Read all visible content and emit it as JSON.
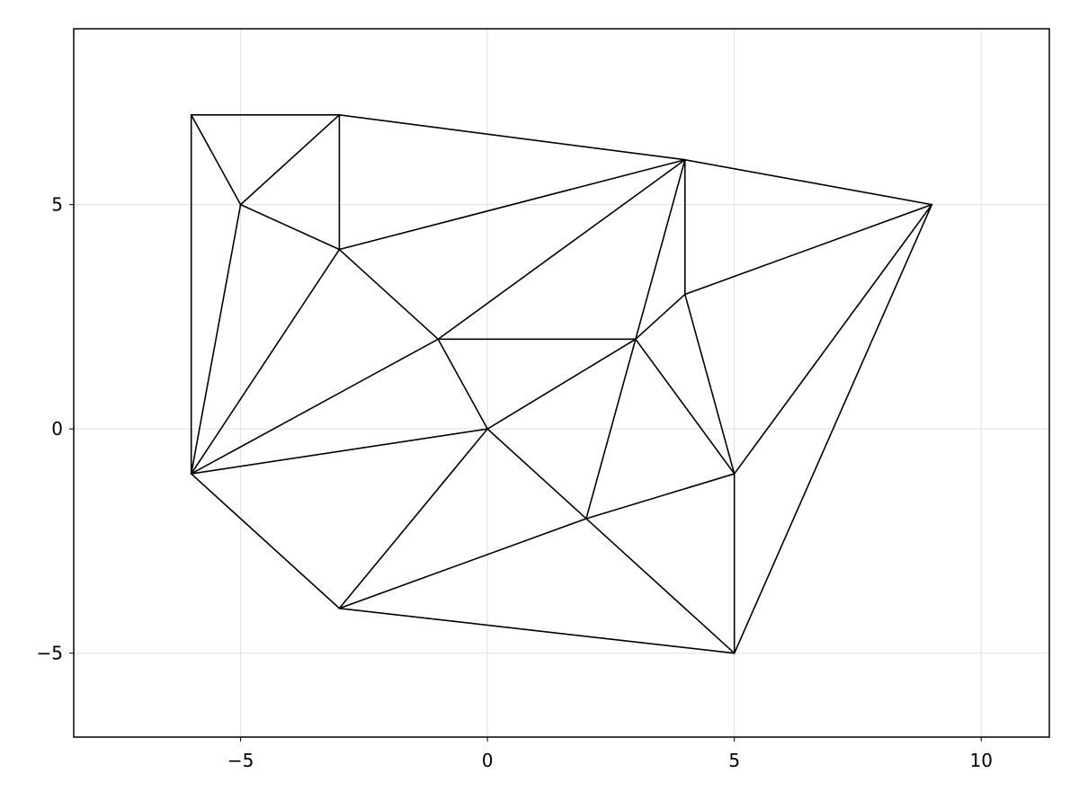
{
  "chart_data": {
    "type": "triangulation",
    "title": "",
    "xlabel": "",
    "ylabel": "",
    "xlim": [
      -8.38,
      11.38
    ],
    "ylim": [
      -6.87,
      8.92
    ],
    "grid": true,
    "xticks": [
      -5,
      0,
      5,
      10
    ],
    "yticks": [
      -5,
      0,
      5
    ],
    "xtick_labels": [
      "−5",
      "0",
      "5",
      "10"
    ],
    "ytick_labels": [
      "−5",
      "0",
      "5"
    ],
    "line_color": "#000000",
    "grid_color": "#e5e5e5",
    "points": [
      [
        -6,
        7
      ],
      [
        -3,
        7
      ],
      [
        -5,
        5
      ],
      [
        -3,
        4
      ],
      [
        4,
        6
      ],
      [
        9,
        5
      ],
      [
        4,
        3
      ],
      [
        -1,
        2
      ],
      [
        3,
        2
      ],
      [
        0,
        0
      ],
      [
        -6,
        -1
      ],
      [
        5,
        -1
      ],
      [
        2,
        -2
      ],
      [
        -3,
        -4
      ],
      [
        5,
        -5
      ]
    ],
    "edges": [
      [
        [
          -6,
          7
        ],
        [
          -3,
          7
        ]
      ],
      [
        [
          -6,
          7
        ],
        [
          -5,
          5
        ]
      ],
      [
        [
          -6,
          7
        ],
        [
          -6,
          -1
        ]
      ],
      [
        [
          -3,
          7
        ],
        [
          -5,
          5
        ]
      ],
      [
        [
          -3,
          7
        ],
        [
          -3,
          4
        ]
      ],
      [
        [
          -3,
          7
        ],
        [
          4,
          6
        ]
      ],
      [
        [
          -5,
          5
        ],
        [
          -3,
          4
        ]
      ],
      [
        [
          -5,
          5
        ],
        [
          -6,
          -1
        ]
      ],
      [
        [
          -3,
          4
        ],
        [
          4,
          6
        ]
      ],
      [
        [
          -3,
          4
        ],
        [
          -1,
          2
        ]
      ],
      [
        [
          -3,
          4
        ],
        [
          -6,
          -1
        ]
      ],
      [
        [
          4,
          6
        ],
        [
          9,
          5
        ]
      ],
      [
        [
          4,
          6
        ],
        [
          -1,
          2
        ]
      ],
      [
        [
          4,
          6
        ],
        [
          3,
          2
        ]
      ],
      [
        [
          4,
          6
        ],
        [
          4,
          3
        ]
      ],
      [
        [
          9,
          5
        ],
        [
          4,
          3
        ]
      ],
      [
        [
          9,
          5
        ],
        [
          5,
          -1
        ]
      ],
      [
        [
          9,
          5
        ],
        [
          5,
          -5
        ]
      ],
      [
        [
          4,
          3
        ],
        [
          3,
          2
        ]
      ],
      [
        [
          4,
          3
        ],
        [
          5,
          -1
        ]
      ],
      [
        [
          -1,
          2
        ],
        [
          3,
          2
        ]
      ],
      [
        [
          -1,
          2
        ],
        [
          0,
          0
        ]
      ],
      [
        [
          -1,
          2
        ],
        [
          -6,
          -1
        ]
      ],
      [
        [
          3,
          2
        ],
        [
          0,
          0
        ]
      ],
      [
        [
          3,
          2
        ],
        [
          5,
          -1
        ]
      ],
      [
        [
          3,
          2
        ],
        [
          2,
          -2
        ]
      ],
      [
        [
          0,
          0
        ],
        [
          -6,
          -1
        ]
      ],
      [
        [
          0,
          0
        ],
        [
          -3,
          -4
        ]
      ],
      [
        [
          0,
          0
        ],
        [
          2,
          -2
        ]
      ],
      [
        [
          -6,
          -1
        ],
        [
          -3,
          -4
        ]
      ],
      [
        [
          5,
          -1
        ],
        [
          2,
          -2
        ]
      ],
      [
        [
          5,
          -1
        ],
        [
          5,
          -5
        ]
      ],
      [
        [
          2,
          -2
        ],
        [
          -3,
          -4
        ]
      ],
      [
        [
          2,
          -2
        ],
        [
          5,
          -5
        ]
      ],
      [
        [
          -3,
          -4
        ],
        [
          5,
          -5
        ]
      ]
    ]
  }
}
